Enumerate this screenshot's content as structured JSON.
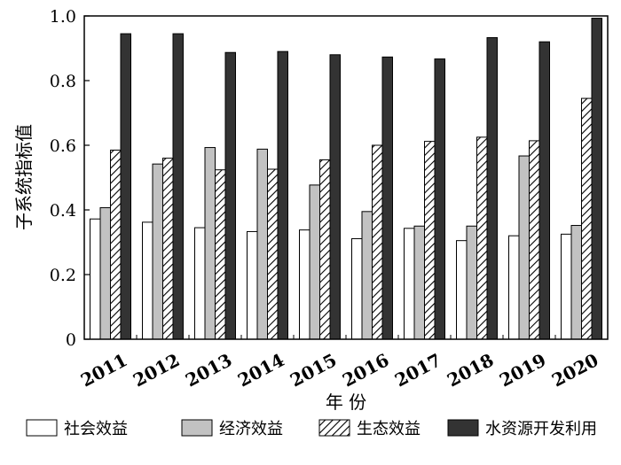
{
  "chart_data": {
    "type": "bar",
    "xlabel": "年 份",
    "ylabel": "子系统指标值",
    "ylim": [
      0,
      1.0
    ],
    "yticks": [
      "0",
      "0.2",
      "0.4",
      "0.6",
      "0.8",
      "1.0"
    ],
    "grid": false,
    "legend_position": "bottom",
    "categories": [
      "2011",
      "2012",
      "2013",
      "2014",
      "2015",
      "2016",
      "2017",
      "2018",
      "2019",
      "2020"
    ],
    "series": [
      {
        "name": "社会效益",
        "fill": "white",
        "values": [
          0.372,
          0.362,
          0.345,
          0.333,
          0.338,
          0.311,
          0.343,
          0.305,
          0.32,
          0.325
        ]
      },
      {
        "name": "经济效益",
        "fill": "gray",
        "values": [
          0.407,
          0.542,
          0.593,
          0.588,
          0.477,
          0.395,
          0.35,
          0.35,
          0.567,
          0.352
        ]
      },
      {
        "name": "生态效益",
        "fill": "hatch",
        "values": [
          0.585,
          0.56,
          0.524,
          0.526,
          0.555,
          0.6,
          0.612,
          0.625,
          0.614,
          0.745
        ]
      },
      {
        "name": "水资源开发利用",
        "fill": "dark",
        "values": [
          0.945,
          0.945,
          0.887,
          0.89,
          0.88,
          0.873,
          0.867,
          0.933,
          0.92,
          0.993
        ]
      }
    ]
  },
  "colors": {
    "white": "#ffffff",
    "gray": "#c2c2c2",
    "dark": "#333333",
    "stroke": "#000000"
  }
}
